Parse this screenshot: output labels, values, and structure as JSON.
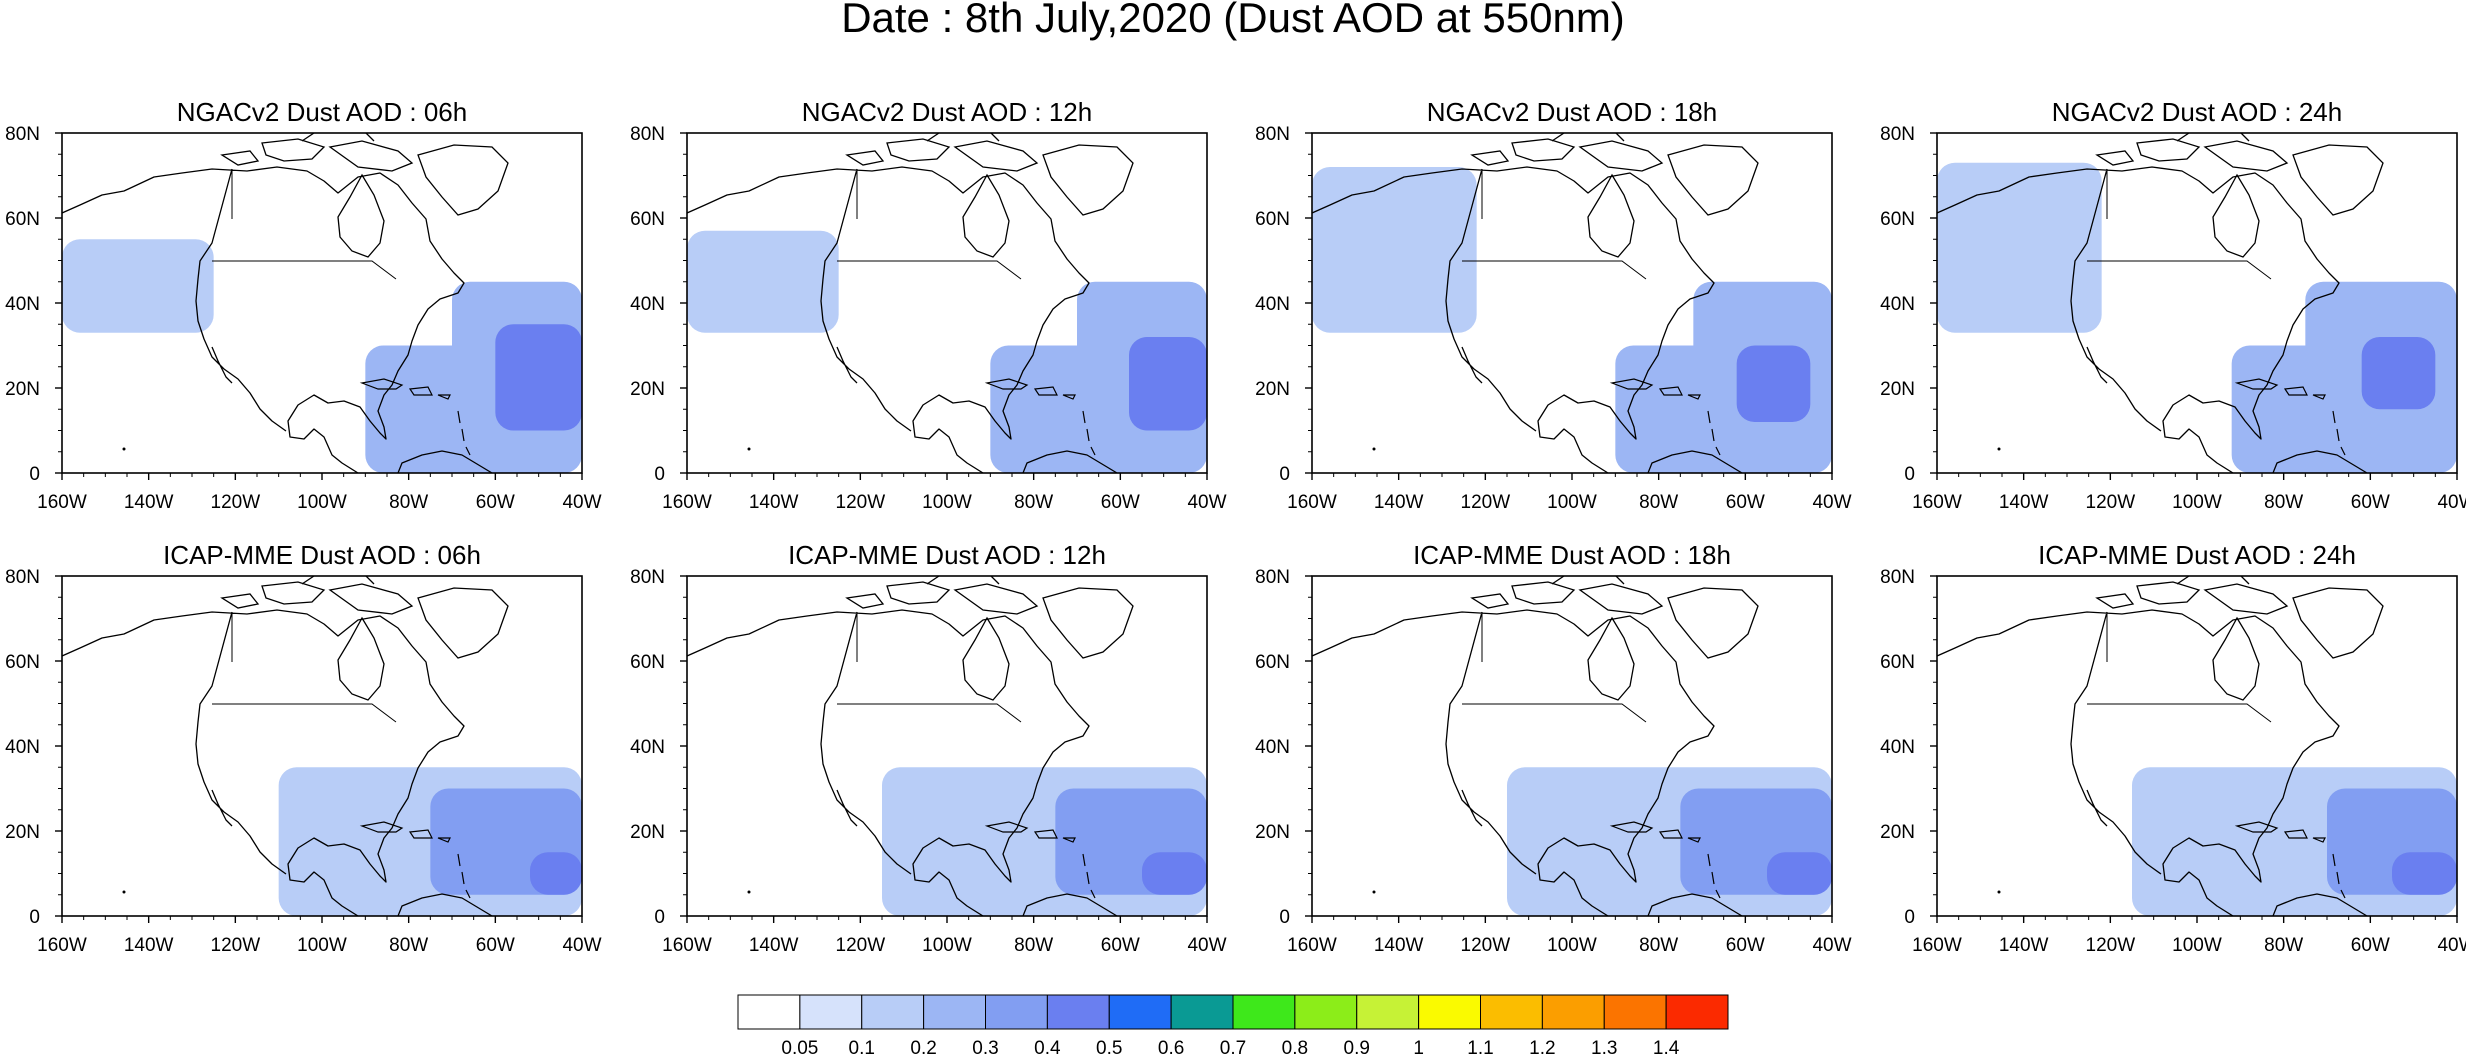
{
  "figure_title": "Date : 8th July,2020 (Dust AOD at 550nm)",
  "axes": {
    "lon_ticks": [
      "160W",
      "140W",
      "120W",
      "100W",
      "80W",
      "60W",
      "40W"
    ],
    "lat_ticks": [
      "80N",
      "60N",
      "40N",
      "20N",
      "0"
    ],
    "lon_range": [
      -160,
      -40
    ],
    "lat_range": [
      0,
      80
    ]
  },
  "panels": [
    {
      "title": "NGACv2 Dust AOD : 06h",
      "model": "NGACv2",
      "hour": 6
    },
    {
      "title": "NGACv2 Dust AOD : 12h",
      "model": "NGACv2",
      "hour": 12
    },
    {
      "title": "NGACv2 Dust AOD : 18h",
      "model": "NGACv2",
      "hour": 18
    },
    {
      "title": "NGACv2 Dust AOD : 24h",
      "model": "NGACv2",
      "hour": 24
    },
    {
      "title": "ICAP-MME Dust AOD : 06h",
      "model": "ICAP-MME",
      "hour": 6
    },
    {
      "title": "ICAP-MME Dust AOD : 12h",
      "model": "ICAP-MME",
      "hour": 12
    },
    {
      "title": "ICAP-MME Dust AOD : 18h",
      "model": "ICAP-MME",
      "hour": 18
    },
    {
      "title": "ICAP-MME Dust AOD : 24h",
      "model": "ICAP-MME",
      "hour": 24
    }
  ],
  "colorbar": {
    "labels": [
      "0.05",
      "0.1",
      "0.2",
      "0.3",
      "0.4",
      "0.5",
      "0.6",
      "0.7",
      "0.8",
      "0.9",
      "1",
      "1.1",
      "1.2",
      "1.3",
      "1.4"
    ],
    "colors": [
      "#ffffff",
      "#d6e2fb",
      "#b8cdf7",
      "#9cb6f4",
      "#829ef2",
      "#6a7ff0",
      "#1f6cf6",
      "#0a9a94",
      "#3ee81b",
      "#8ced19",
      "#c6f236",
      "#fafa00",
      "#fbbd00",
      "#fb9e00",
      "#fb7400",
      "#fb2a00"
    ]
  },
  "chart_data": {
    "type": "heatmap",
    "title": "Date : 8th July,2020 (Dust AOD at 550nm)",
    "variable": "Dust AOD at 550nm",
    "lon_range": [
      -160,
      -40
    ],
    "lat_range": [
      0,
      80
    ],
    "levels": [
      0.05,
      0.1,
      0.2,
      0.3,
      0.4,
      0.5,
      0.6,
      0.7,
      0.8,
      0.9,
      1,
      1.1,
      1.2,
      1.3,
      1.4
    ],
    "panels": [
      {
        "title": "NGACv2 Dust AOD : 06h",
        "regions": [
          {
            "lon": [
              -160,
              -125
            ],
            "lat": [
              33,
              55
            ],
            "aod": 0.1
          },
          {
            "lon": [
              -90,
              -40
            ],
            "lat": [
              0,
              30
            ],
            "aod": 0.2
          },
          {
            "lon": [
              -70,
              -40
            ],
            "lat": [
              5,
              45
            ],
            "aod": 0.2
          },
          {
            "lon": [
              -60,
              -40
            ],
            "lat": [
              10,
              35
            ],
            "aod": 0.4
          }
        ]
      },
      {
        "title": "NGACv2 Dust AOD : 12h",
        "regions": [
          {
            "lon": [
              -160,
              -125
            ],
            "lat": [
              33,
              57
            ],
            "aod": 0.1
          },
          {
            "lon": [
              -90,
              -40
            ],
            "lat": [
              0,
              30
            ],
            "aod": 0.2
          },
          {
            "lon": [
              -70,
              -40
            ],
            "lat": [
              5,
              45
            ],
            "aod": 0.2
          },
          {
            "lon": [
              -58,
              -40
            ],
            "lat": [
              10,
              32
            ],
            "aod": 0.4
          }
        ]
      },
      {
        "title": "NGACv2 Dust AOD : 18h",
        "regions": [
          {
            "lon": [
              -160,
              -122
            ],
            "lat": [
              33,
              72
            ],
            "aod": 0.1
          },
          {
            "lon": [
              -90,
              -40
            ],
            "lat": [
              0,
              30
            ],
            "aod": 0.2
          },
          {
            "lon": [
              -72,
              -40
            ],
            "lat": [
              5,
              45
            ],
            "aod": 0.2
          },
          {
            "lon": [
              -62,
              -45
            ],
            "lat": [
              12,
              30
            ],
            "aod": 0.4
          }
        ]
      },
      {
        "title": "NGACv2 Dust AOD : 24h",
        "regions": [
          {
            "lon": [
              -160,
              -122
            ],
            "lat": [
              33,
              73
            ],
            "aod": 0.1
          },
          {
            "lon": [
              -92,
              -40
            ],
            "lat": [
              0,
              30
            ],
            "aod": 0.2
          },
          {
            "lon": [
              -75,
              -40
            ],
            "lat": [
              5,
              45
            ],
            "aod": 0.2
          },
          {
            "lon": [
              -62,
              -45
            ],
            "lat": [
              15,
              32
            ],
            "aod": 0.4
          }
        ]
      },
      {
        "title": "ICAP-MME Dust AOD : 06h",
        "regions": [
          {
            "lon": [
              -110,
              -40
            ],
            "lat": [
              0,
              35
            ],
            "aod": 0.1
          },
          {
            "lon": [
              -75,
              -40
            ],
            "lat": [
              5,
              30
            ],
            "aod": 0.3
          },
          {
            "lon": [
              -52,
              -40
            ],
            "lat": [
              5,
              15
            ],
            "aod": 0.4
          }
        ]
      },
      {
        "title": "ICAP-MME Dust AOD : 12h",
        "regions": [
          {
            "lon": [
              -115,
              -40
            ],
            "lat": [
              0,
              35
            ],
            "aod": 0.1
          },
          {
            "lon": [
              -75,
              -40
            ],
            "lat": [
              5,
              30
            ],
            "aod": 0.3
          },
          {
            "lon": [
              -55,
              -40
            ],
            "lat": [
              5,
              15
            ],
            "aod": 0.4
          }
        ]
      },
      {
        "title": "ICAP-MME Dust AOD : 18h",
        "regions": [
          {
            "lon": [
              -115,
              -40
            ],
            "lat": [
              0,
              35
            ],
            "aod": 0.1
          },
          {
            "lon": [
              -75,
              -40
            ],
            "lat": [
              5,
              30
            ],
            "aod": 0.3
          },
          {
            "lon": [
              -55,
              -40
            ],
            "lat": [
              5,
              15
            ],
            "aod": 0.4
          }
        ]
      },
      {
        "title": "ICAP-MME Dust AOD : 24h",
        "regions": [
          {
            "lon": [
              -115,
              -40
            ],
            "lat": [
              0,
              35
            ],
            "aod": 0.1
          },
          {
            "lon": [
              -70,
              -40
            ],
            "lat": [
              5,
              30
            ],
            "aod": 0.3
          },
          {
            "lon": [
              -55,
              -40
            ],
            "lat": [
              5,
              15
            ],
            "aod": 0.4
          }
        ]
      }
    ]
  }
}
